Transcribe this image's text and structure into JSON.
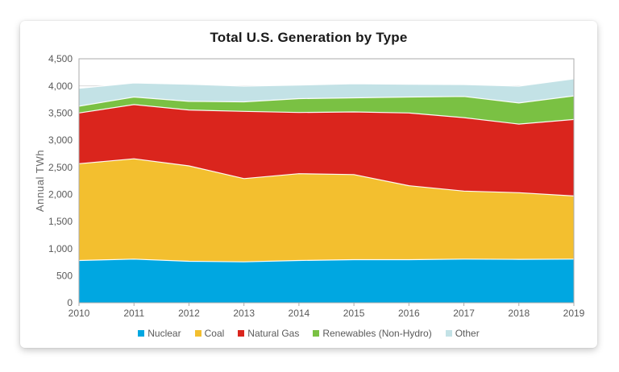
{
  "card": {
    "title": "Total U.S. Generation by Type"
  },
  "chart_data": {
    "type": "area",
    "stacked": true,
    "title": "Total U.S. Generation by Type",
    "xlabel": "",
    "ylabel": "Annual TWh",
    "x": [
      2010,
      2011,
      2012,
      2013,
      2014,
      2015,
      2016,
      2017,
      2018,
      2019
    ],
    "series": [
      {
        "name": "Nuclear",
        "color": "#00A7E1",
        "values": [
          780,
          805,
          765,
          755,
          780,
          795,
          795,
          805,
          800,
          805
        ]
      },
      {
        "name": "Coal",
        "color": "#F3BF2F",
        "values": [
          1785,
          1850,
          1760,
          1535,
          1600,
          1570,
          1365,
          1255,
          1230,
          1165
        ]
      },
      {
        "name": "Natural Gas",
        "color": "#DA251D",
        "values": [
          935,
          1000,
          1030,
          1240,
          1130,
          1155,
          1340,
          1355,
          1265,
          1410
        ]
      },
      {
        "name": "Renewables (Non-Hydro)",
        "color": "#7AC143",
        "values": [
          125,
          140,
          160,
          175,
          255,
          260,
          295,
          390,
          390,
          435
        ]
      },
      {
        "name": "Other",
        "color": "#C3E2E6",
        "values": [
          330,
          260,
          315,
          290,
          250,
          260,
          235,
          220,
          310,
          315
        ]
      }
    ],
    "stacked_totals": [
      3955,
      4055,
      4030,
      3995,
      4015,
      4040,
      4030,
      4025,
      3995,
      4130
    ],
    "ylim": [
      0,
      4500
    ],
    "ytick_step": 500,
    "ytick_labels": [
      "0",
      "500",
      "1,000",
      "1,500",
      "2,000",
      "2,500",
      "3,000",
      "3,500",
      "4,000",
      "4,500"
    ],
    "grid": true,
    "legend_position": "bottom",
    "colors": {
      "grid": "#D9D9D9",
      "frame": "#ABABAB",
      "tick": "#ABABAB",
      "axis_text": "#595959",
      "title_text": "#1A1A1A",
      "area_edge": "#FFFFFF"
    }
  }
}
